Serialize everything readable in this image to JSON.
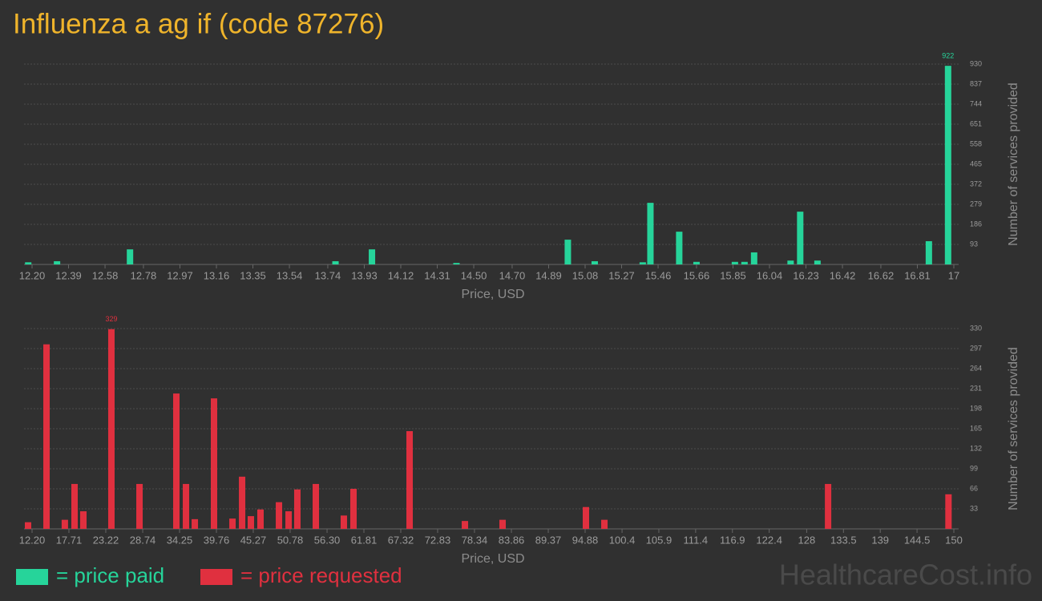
{
  "title": "Influenza a ag if (code 87276)",
  "watermark": "HealthcareCost.info",
  "chart_data": [
    {
      "type": "bar",
      "x_label": "Price, USD",
      "y_label": "Number of services provided",
      "x": [
        12.18,
        12.33,
        12.71,
        13.78,
        13.97,
        14.41,
        14.99,
        15.13,
        15.38,
        15.42,
        15.57,
        15.66,
        15.86,
        15.91,
        15.96,
        16.15,
        16.2,
        16.29,
        16.87,
        16.97
      ],
      "series": [
        {
          "name": "= price paid",
          "color": "#26d49a",
          "values": [
            10,
            15,
            70,
            15,
            70,
            7,
            115,
            15,
            10,
            286,
            152,
            12,
            12,
            12,
            56,
            18,
            245,
            18,
            108,
            922
          ]
        }
      ],
      "xlim": [
        12.2,
        17
      ],
      "xticks": [
        {
          "value": 12.2,
          "label": "12.20"
        },
        12.39,
        12.58,
        12.78,
        12.97,
        13.16,
        13.35,
        13.54,
        13.74,
        13.93,
        14.12,
        14.31,
        {
          "value": 14.5,
          "label": "14.50"
        },
        {
          "value": 14.7,
          "label": "14.70"
        },
        14.89,
        15.08,
        15.27,
        15.46,
        15.66,
        15.85,
        16.04,
        16.23,
        16.42,
        16.62,
        16.81,
        17
      ],
      "ylim": [
        0,
        930
      ],
      "yticks": [
        93,
        186,
        279,
        372,
        465,
        558,
        651,
        744,
        837,
        930
      ],
      "grid": true
    },
    {
      "type": "bar",
      "x_label": "Price, USD",
      "y_label": "Number of services provided",
      "x": [
        11.6,
        14.36,
        17.1,
        18.55,
        19.87,
        24.06,
        28.26,
        33.77,
        35.21,
        36.53,
        39.4,
        42.16,
        43.6,
        44.91,
        46.35,
        49.11,
        50.55,
        51.86,
        54.62,
        58.81,
        60.25,
        68.64,
        76.91,
        82.54,
        95.0,
        97.76,
        131.2,
        149.2
      ],
      "series": [
        {
          "name": "= price requested",
          "color": "#e0303f",
          "values": [
            11,
            304,
            15,
            74,
            29,
            329,
            74,
            223,
            74,
            16,
            215,
            17,
            86,
            21,
            32,
            44,
            29,
            65,
            74,
            22,
            66,
            161,
            13,
            15,
            36,
            15,
            74,
            57
          ]
        }
      ],
      "xlim": [
        12.2,
        150
      ],
      "xticks": [
        {
          "value": 12.2,
          "label": "12.20"
        },
        17.71,
        23.22,
        28.74,
        34.25,
        39.76,
        45.27,
        50.78,
        {
          "value": 56.3,
          "label": "56.30"
        },
        61.81,
        67.32,
        72.83,
        78.34,
        83.86,
        89.37,
        94.88,
        100.4,
        105.9,
        111.4,
        116.9,
        122.4,
        128,
        133.5,
        139,
        144.5,
        150
      ],
      "ylim": [
        0,
        330
      ],
      "yticks": [
        33,
        66,
        99,
        132,
        165,
        198,
        231,
        264,
        297,
        330
      ],
      "grid": true
    }
  ]
}
